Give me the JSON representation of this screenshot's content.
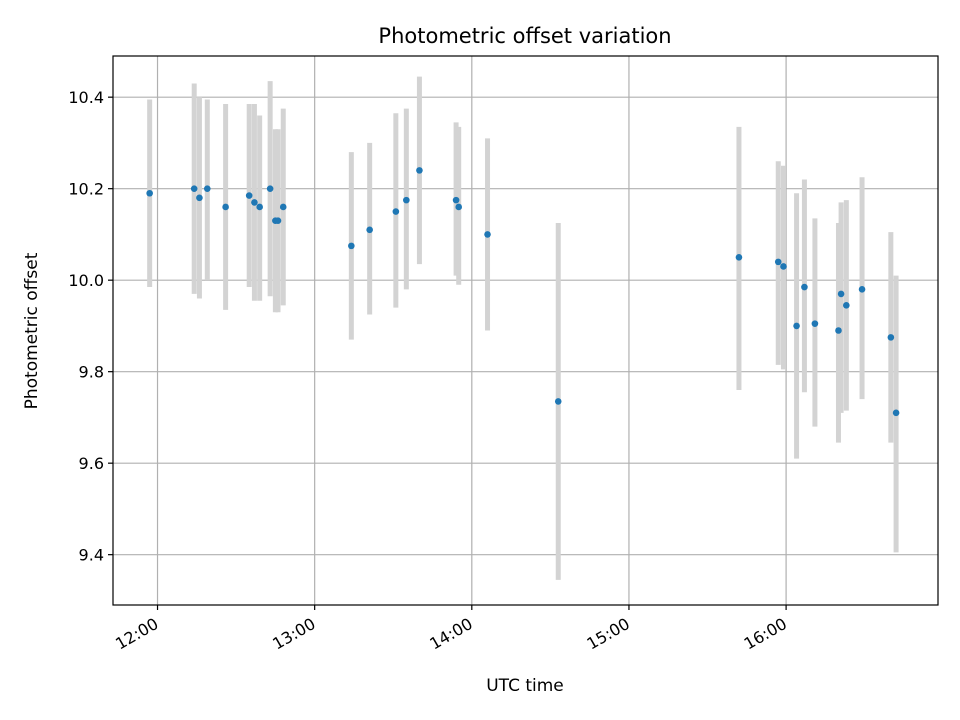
{
  "chart_data": {
    "type": "scatter",
    "title": "Photometric offset variation",
    "xlabel": "UTC time",
    "ylabel": "Photometric offset",
    "x_tick_labels": [
      "12:00",
      "13:00",
      "14:00",
      "15:00",
      "16:00"
    ],
    "y_tick_labels": [
      "9.4",
      "9.6",
      "9.8",
      "10.0",
      "10.2",
      "10.4"
    ],
    "x_ticks": [
      "12:00",
      "13:00",
      "14:00",
      "15:00",
      "16:00"
    ],
    "y_ticks": [
      9.4,
      9.6,
      9.8,
      10.0,
      10.2,
      10.4
    ],
    "xlim": [
      "11:43",
      "16:58"
    ],
    "ylim": [
      9.29,
      10.49
    ],
    "grid": true,
    "point_color": "#1f77b4",
    "errorbar_color": "#d3d3d3",
    "series": [
      {
        "x": [
          "11:57",
          "12:14",
          "12:16",
          "12:19",
          "12:26",
          "12:35",
          "12:37",
          "12:39",
          "12:43",
          "12:45",
          "12:46",
          "12:48",
          "13:14",
          "13:21",
          "13:31",
          "13:35",
          "13:40",
          "13:54",
          "13:55",
          "14:06",
          "14:33",
          "15:42",
          "15:57",
          "15:59",
          "16:04",
          "16:07",
          "16:11",
          "16:20",
          "16:21",
          "16:23",
          "16:29",
          "16:40",
          "16:42"
        ],
        "y": [
          10.19,
          10.2,
          10.18,
          10.2,
          10.16,
          10.185,
          10.17,
          10.16,
          10.2,
          10.13,
          10.13,
          10.16,
          10.075,
          10.11,
          10.15,
          10.175,
          10.24,
          10.175,
          10.16,
          10.1,
          9.735,
          10.05,
          10.04,
          10.03,
          9.9,
          9.985,
          9.905,
          9.89,
          9.97,
          9.945,
          9.98,
          9.875,
          9.71
        ],
        "y_low": [
          9.985,
          9.97,
          9.96,
          10.0,
          9.935,
          9.985,
          9.955,
          9.955,
          9.965,
          9.93,
          9.93,
          9.945,
          9.87,
          9.925,
          9.94,
          9.98,
          10.035,
          10.01,
          9.99,
          9.89,
          9.345,
          9.76,
          9.815,
          9.805,
          9.61,
          9.755,
          9.68,
          9.645,
          9.71,
          9.715,
          9.74,
          9.645,
          9.405
        ],
        "y_high": [
          10.395,
          10.43,
          10.4,
          10.395,
          10.385,
          10.385,
          10.385,
          10.36,
          10.435,
          10.33,
          10.33,
          10.375,
          10.28,
          10.3,
          10.365,
          10.375,
          10.445,
          10.345,
          10.335,
          10.31,
          10.125,
          10.335,
          10.26,
          10.25,
          10.19,
          10.22,
          10.135,
          10.125,
          10.17,
          10.175,
          10.225,
          10.105,
          10.01
        ]
      }
    ]
  }
}
